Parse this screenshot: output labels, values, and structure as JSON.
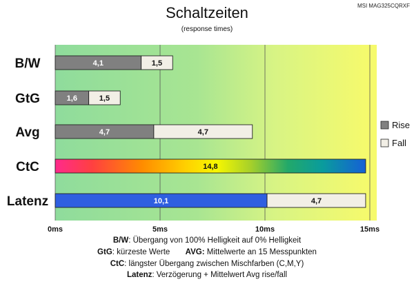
{
  "header": {
    "model": "MSI MAG325CQRXF"
  },
  "chart_data": {
    "type": "bar",
    "orientation": "horizontal",
    "stacked": true,
    "title": "Schaltzeiten",
    "subtitle": "(response times)",
    "xlabel": "",
    "ylabel": "",
    "xlim": [
      0,
      15
    ],
    "x_ticks": [
      "0ms",
      "5ms",
      "10ms",
      "15ms"
    ],
    "x_tick_values": [
      0,
      5,
      10,
      15
    ],
    "grid": true,
    "legend_position": "right",
    "categories": [
      "B/W",
      "GtG",
      "Avg",
      "CtC",
      "Latenz"
    ],
    "series": [
      {
        "name": "Rise",
        "values": [
          4.1,
          1.6,
          4.7,
          14.8,
          10.1
        ],
        "labels": [
          "4,1",
          "1,6",
          "4,7",
          "14,8",
          "10,1"
        ],
        "color": "#808080"
      },
      {
        "name": "Fall",
        "values": [
          1.5,
          1.5,
          4.7,
          null,
          4.7
        ],
        "labels": [
          "1,5",
          "1,5",
          "4,7",
          "",
          "4,7"
        ],
        "color": "#f2efe6"
      }
    ],
    "special_colors": {
      "ctc_gradient": [
        "#ff2a8c",
        "#ff4040",
        "#ff8c00",
        "#ffd000",
        "#f7f700",
        "#a6d02a",
        "#22a86a",
        "#0a9c9c",
        "#1560d6"
      ],
      "latenz_rise": "#2f5fe0",
      "background_gradient": [
        "#8fdc9c",
        "#c6f090",
        "#f4fa70"
      ]
    }
  },
  "footnotes": {
    "bw_key": "B/W",
    "bw_text": ":  Übergang von 100% Helligkeit auf 0% Helligkeit",
    "gtg_key": "GtG",
    "gtg_text": ": kürzeste  Werte",
    "avg_key": "AVG:",
    "avg_text": " Mittelwerte  an 15 Messpunkten",
    "ctc_key": "CtC",
    "ctc_text": ": längster Übergang  zwischen Mischfarben (C,M,Y)",
    "lat_key": "Latenz",
    "lat_text": ": Verzögerung  + Mittelwert Avg rise/fall"
  }
}
